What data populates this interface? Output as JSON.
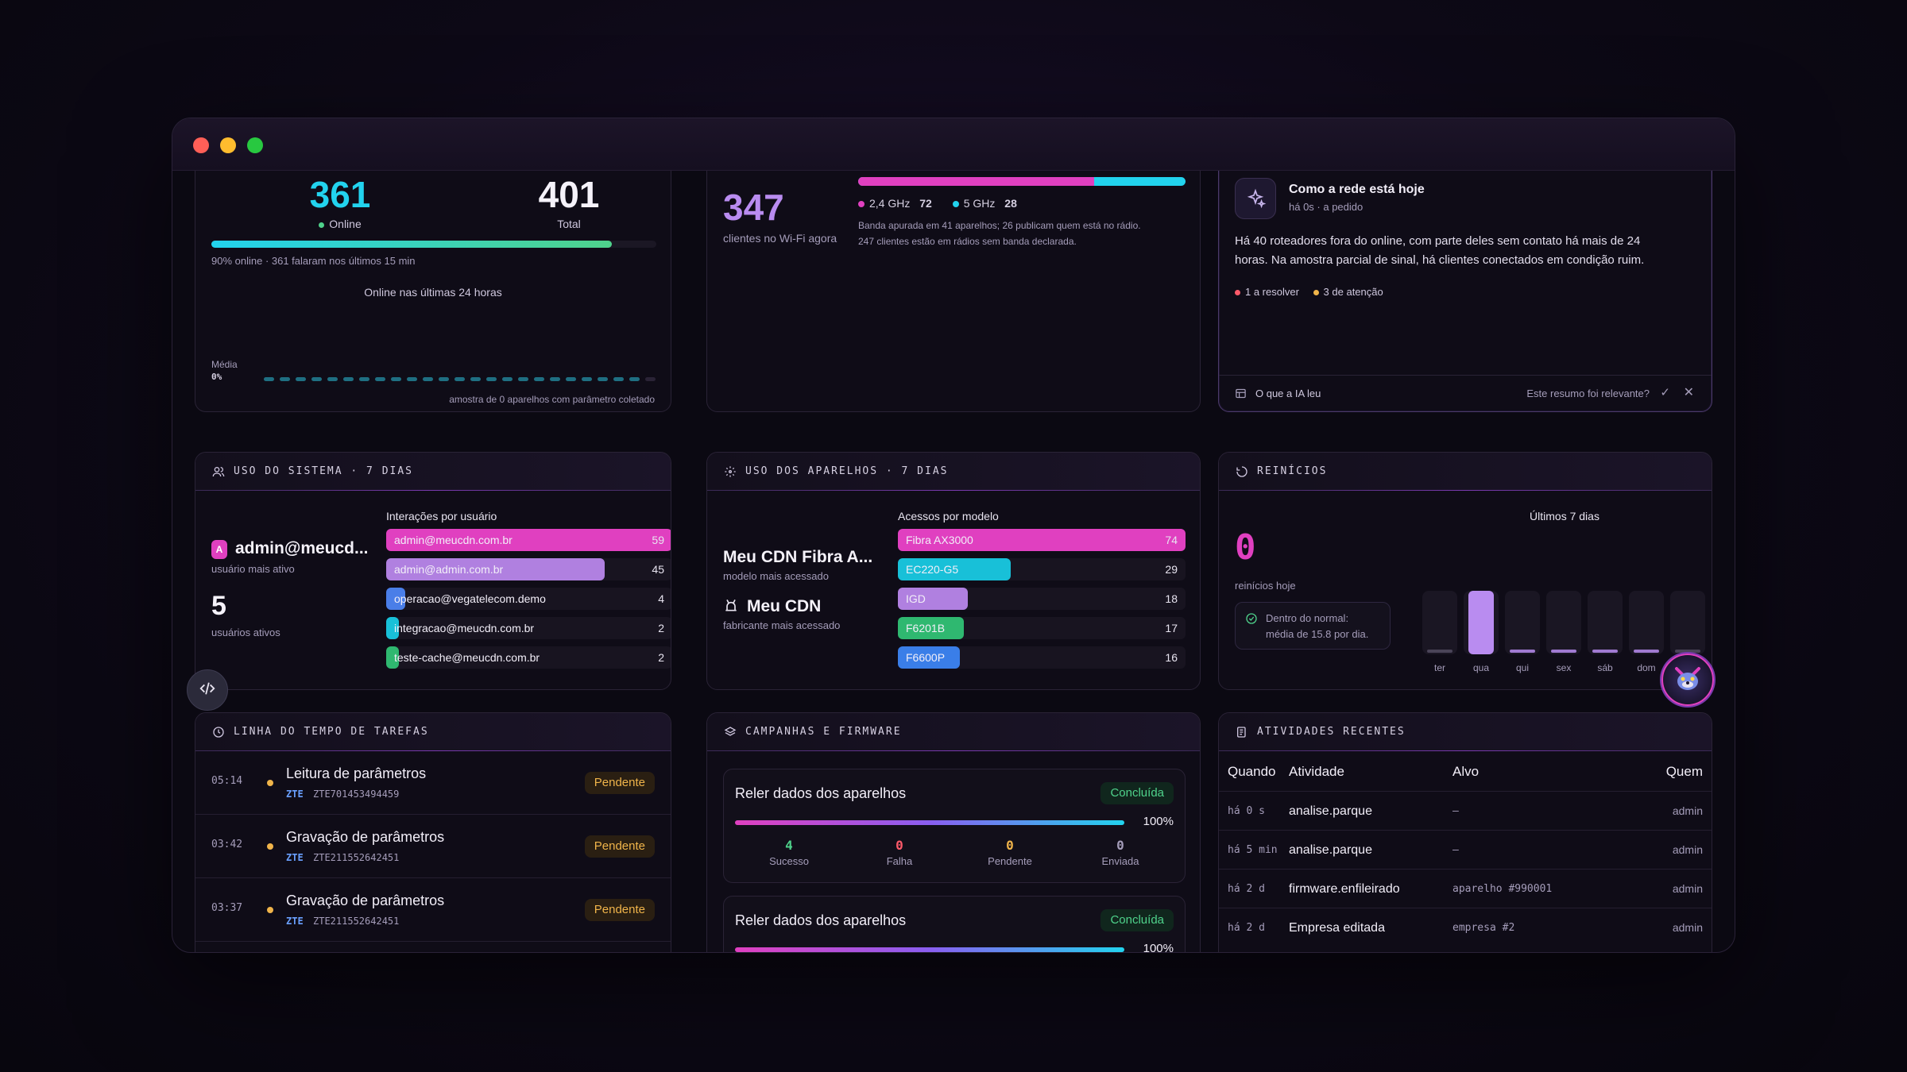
{
  "devices": {
    "online_value": "361",
    "online_label": "Online",
    "total_value": "401",
    "total_label": "Total",
    "online_fraction": 0.9,
    "summary": "90% online · 361 falaram nos últimos 15 min",
    "chart_title": "Online nas últimas 24 horas",
    "avg_label": "Média",
    "avg_value": "0%",
    "sample_note": "amostra de 0 aparelhos com parâmetro coletado"
  },
  "wifi": {
    "clients_value": "347",
    "clients_label": "clientes no Wi-Fi agora",
    "band_24_label": "2,4 GHz",
    "band_24_value": "72",
    "band_5_label": "5 GHz",
    "band_5_value": "28",
    "band_24_fraction": 0.72,
    "note_line1": "Banda apurada em 41 aparelhos; 26 publicam quem está no rádio.",
    "note_line2": "247 clientes estão em rádios sem banda declarada."
  },
  "ai_summary": {
    "title": "Como a rede está hoje",
    "subtitle": "há 0s · a pedido",
    "text_line1": "Há 40 roteadores fora do online, com parte deles sem contato há mais de 24",
    "text_line2": "horas. Na amostra parcial de sinal, há clientes conectados em condição ruim.",
    "tag_resolve": "1 a resolver",
    "tag_attention": "3 de atenção",
    "footer_read": "O que a IA leu",
    "footer_question": "Este resumo foi relevante?"
  },
  "system_usage": {
    "header": "USO DO SISTEMA · 7 DIAS",
    "avatar_letter": "A",
    "top_user": "admin@meucd...",
    "top_user_label": "usuário mais ativo",
    "active_users": "5",
    "active_users_label": "usuários ativos",
    "chart_title": "Interações por usuário",
    "rows": [
      {
        "label": "admin@meucdn.com.br",
        "value": 59,
        "color": "#e040c0"
      },
      {
        "label": "admin@admin.com.br",
        "value": 45,
        "color": "#b080e0"
      },
      {
        "label": "operacao@vegatelecom.demo",
        "value": 4,
        "color": "#4a7ee8"
      },
      {
        "label": "integracao@meucdn.com.br",
        "value": 2,
        "color": "#18c0d8"
      },
      {
        "label": "teste-cache@meucdn.com.br",
        "value": 2,
        "color": "#2fb870"
      }
    ]
  },
  "device_usage": {
    "header": "USO DOS APARELHOS · 7 DIAS",
    "top_model": "Meu CDN Fibra A...",
    "top_model_label": "modelo mais acessado",
    "top_maker": "Meu CDN",
    "top_maker_label": "fabricante mais acessado",
    "chart_title": "Acessos por modelo",
    "rows": [
      {
        "label": "Fibra AX3000",
        "value": 74,
        "color": "#e040c0"
      },
      {
        "label": "EC220-G5",
        "value": 29,
        "color": "#18c0d8"
      },
      {
        "label": "IGD",
        "value": 18,
        "color": "#b080e0"
      },
      {
        "label": "F6201B",
        "value": 17,
        "color": "#2fb870"
      },
      {
        "label": "F6600P",
        "value": 16,
        "color": "#3a7ee8"
      }
    ]
  },
  "restarts": {
    "header": "REINÍCIOS",
    "value": "0",
    "value_label": "reinícios hoje",
    "normal_line1": "Dentro do normal:",
    "normal_line2": "média de 15.8 por dia.",
    "chart_title": "Últimos 7 dias",
    "days": [
      {
        "label": "ter",
        "value": 0
      },
      {
        "label": "qua",
        "value": 1
      },
      {
        "label": "qui",
        "value": 0
      },
      {
        "label": "sex",
        "value": 0
      },
      {
        "label": "sáb",
        "value": 0
      },
      {
        "label": "dom",
        "value": 0
      },
      {
        "label": "",
        "value": 0
      }
    ]
  },
  "tasks": {
    "header": "LINHA DO TEMPO DE TAREFAS",
    "items": [
      {
        "time": "05:14",
        "title": "Leitura de parâmetros",
        "brand": "ZTE",
        "serial": "ZTE701453494459",
        "status": "Pendente"
      },
      {
        "time": "03:42",
        "title": "Gravação de parâmetros",
        "brand": "ZTE",
        "serial": "ZTE211552642451",
        "status": "Pendente"
      },
      {
        "time": "03:37",
        "title": "Gravação de parâmetros",
        "brand": "ZTE",
        "serial": "ZTE211552642451",
        "status": "Pendente"
      }
    ]
  },
  "campaigns": {
    "header": "CAMPANHAS E FIRMWARE",
    "items": [
      {
        "title": "Reler dados dos aparelhos",
        "status": "Concluída",
        "progress": "100%",
        "stats": [
          {
            "value": "4",
            "label": "Sucesso",
            "color": "#4fd28b"
          },
          {
            "value": "0",
            "label": "Falha",
            "color": "#ff5a6a"
          },
          {
            "value": "0",
            "label": "Pendente",
            "color": "#f0b44a"
          },
          {
            "value": "0",
            "label": "Enviada",
            "color": "#a59dba"
          }
        ]
      },
      {
        "title": "Reler dados dos aparelhos",
        "status": "Concluída",
        "progress": "100%"
      }
    ]
  },
  "activities": {
    "header": "ATIVIDADES RECENTES",
    "columns": {
      "when": "Quando",
      "activity": "Atividade",
      "target": "Alvo",
      "who": "Quem"
    },
    "rows": [
      {
        "when": "há 0 s",
        "activity": "analise.parque",
        "target": "—",
        "who": "admin"
      },
      {
        "when": "há 5 min",
        "activity": "analise.parque",
        "target": "—",
        "who": "admin"
      },
      {
        "when": "há 2 d",
        "activity": "firmware.enfileirado",
        "target": "aparelho #990001",
        "who": "admin"
      },
      {
        "when": "há 2 d",
        "activity": "Empresa editada",
        "target": "empresa #2",
        "who": "admin"
      }
    ]
  },
  "colors": {
    "cyan": "#22d3ee",
    "magenta": "#e040c0",
    "violet": "#b98cf0",
    "green": "#4fd28b",
    "amber": "#f0b44a",
    "red": "#ff5a6a"
  }
}
